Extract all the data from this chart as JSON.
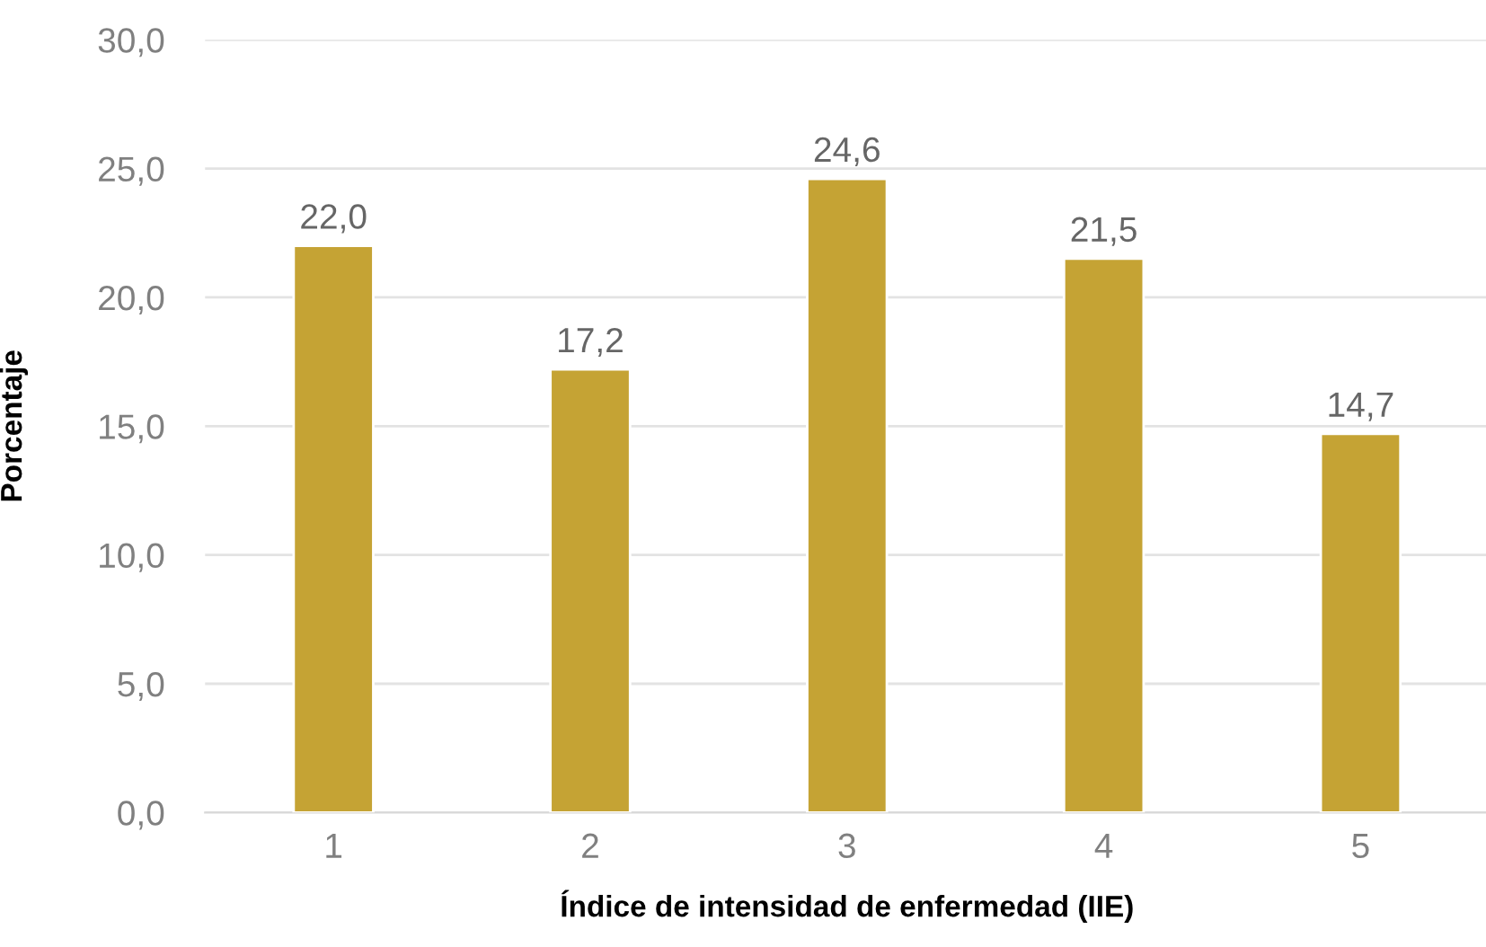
{
  "chart_data": {
    "type": "bar",
    "xlabel": "Índice de intensidad de enfermedad (IIE)",
    "ylabel": "Porcentaje",
    "categories": [
      "1",
      "2",
      "3",
      "4",
      "5"
    ],
    "values": [
      22.0,
      17.2,
      24.6,
      21.5,
      14.7
    ],
    "value_labels": [
      "22,0",
      "17,2",
      "24,6",
      "21,5",
      "14,7"
    ],
    "color": "#c5a334",
    "ylim": [
      0,
      30
    ],
    "yticks": [
      {
        "value": 0,
        "label": "0,0"
      },
      {
        "value": 5,
        "label": "5,0"
      },
      {
        "value": 10,
        "label": "10,0"
      },
      {
        "value": 15,
        "label": "15,0"
      },
      {
        "value": 20,
        "label": "20,0"
      },
      {
        "value": 25,
        "label": "25,0"
      },
      {
        "value": 30,
        "label": "30,0"
      }
    ],
    "grid": "y",
    "legend": false
  }
}
